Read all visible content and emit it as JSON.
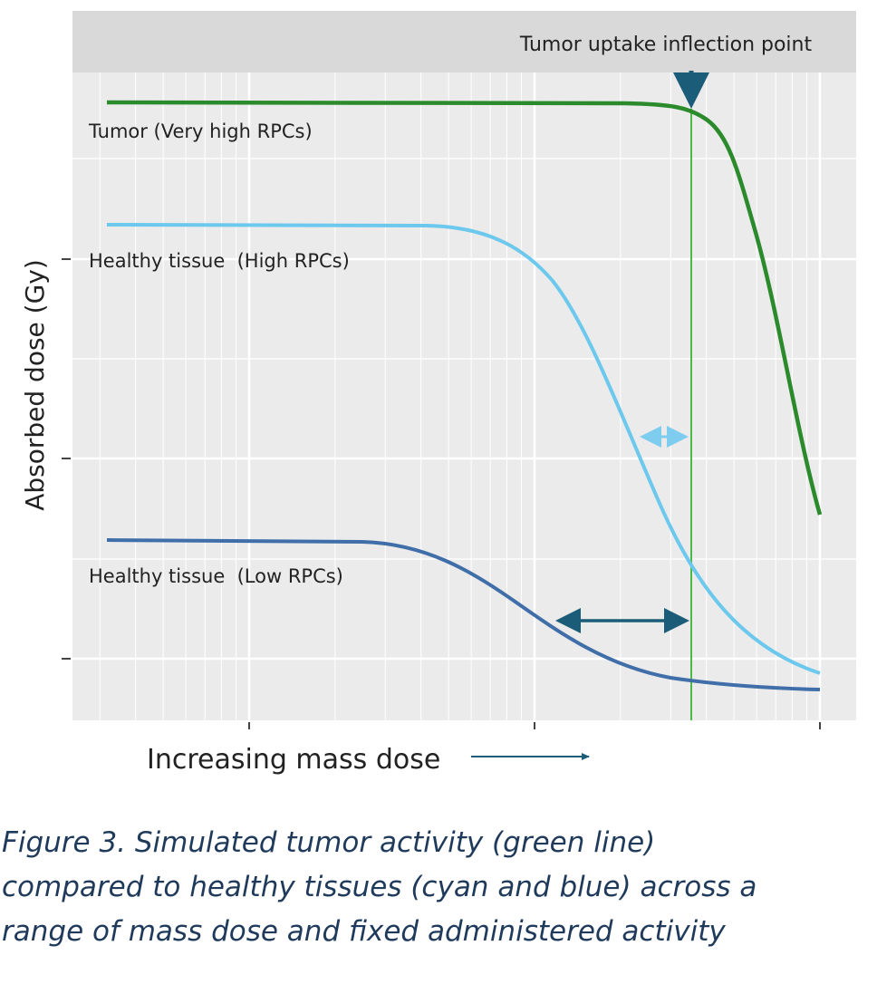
{
  "header": {
    "title": "Tumor uptake inflection point"
  },
  "axes": {
    "y_label": "Absorbed dose (Gy)",
    "x_label": "Increasing mass dose"
  },
  "curve_labels": [
    "Tumor (Very high RPCs)",
    "Healthy tissue  (High RPCs)",
    "Healthy tissue  (Low RPCs)"
  ],
  "caption": [
    "Figure 3. Simulated tumor activity (green line)",
    "compared to healthy tissues (cyan and blue) across a",
    "range of mass dose and fixed administered activity"
  ]
}
